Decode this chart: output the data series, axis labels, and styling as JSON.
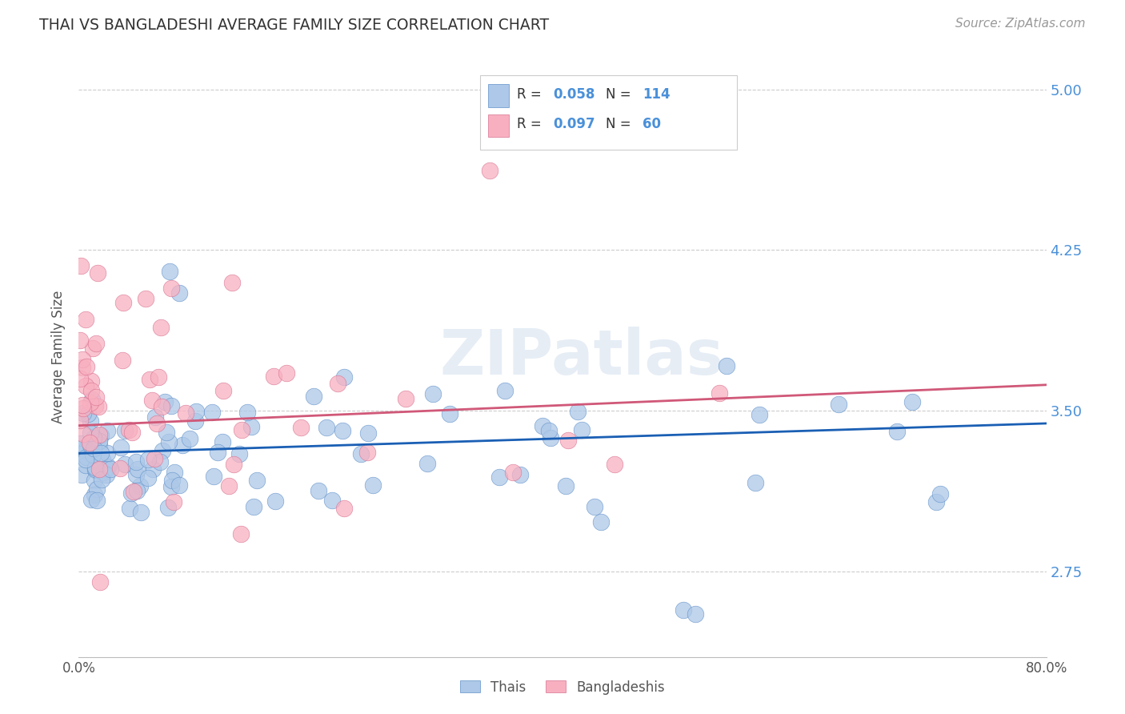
{
  "title": "THAI VS BANGLADESHI AVERAGE FAMILY SIZE CORRELATION CHART",
  "source": "Source: ZipAtlas.com",
  "ylabel": "Average Family Size",
  "xmin": 0.0,
  "xmax": 0.8,
  "ymin": 2.35,
  "ymax": 5.15,
  "yticks": [
    2.75,
    3.5,
    4.25,
    5.0
  ],
  "xtick_positions": [
    0.0,
    0.1,
    0.2,
    0.3,
    0.4,
    0.5,
    0.6,
    0.7,
    0.8
  ],
  "xticklabels": [
    "0.0%",
    "",
    "",
    "",
    "",
    "",
    "",
    "",
    "80.0%"
  ],
  "thai_fill_color": "#adc8e8",
  "thai_edge_color": "#6090c8",
  "bangladeshi_fill_color": "#f8b0c0",
  "bangladeshi_edge_color": "#d87090",
  "thai_line_color": "#1a5fb4",
  "bangladeshi_line_color": "#d05878",
  "thai_R": 0.058,
  "thai_N": 114,
  "bangladeshi_R": 0.097,
  "bangladeshi_N": 60,
  "watermark": "ZIPatlas",
  "legend_thai_label": "Thais",
  "legend_bangladeshi_label": "Bangladeshis",
  "thai_line_x0": 0.0,
  "thai_line_x1": 0.8,
  "thai_line_y0": 3.3,
  "thai_line_y1": 3.44,
  "bangladeshi_line_x0": 0.0,
  "bangladeshi_line_x1": 0.8,
  "bangladeshi_line_y0": 3.43,
  "bangladeshi_line_y1": 3.62
}
